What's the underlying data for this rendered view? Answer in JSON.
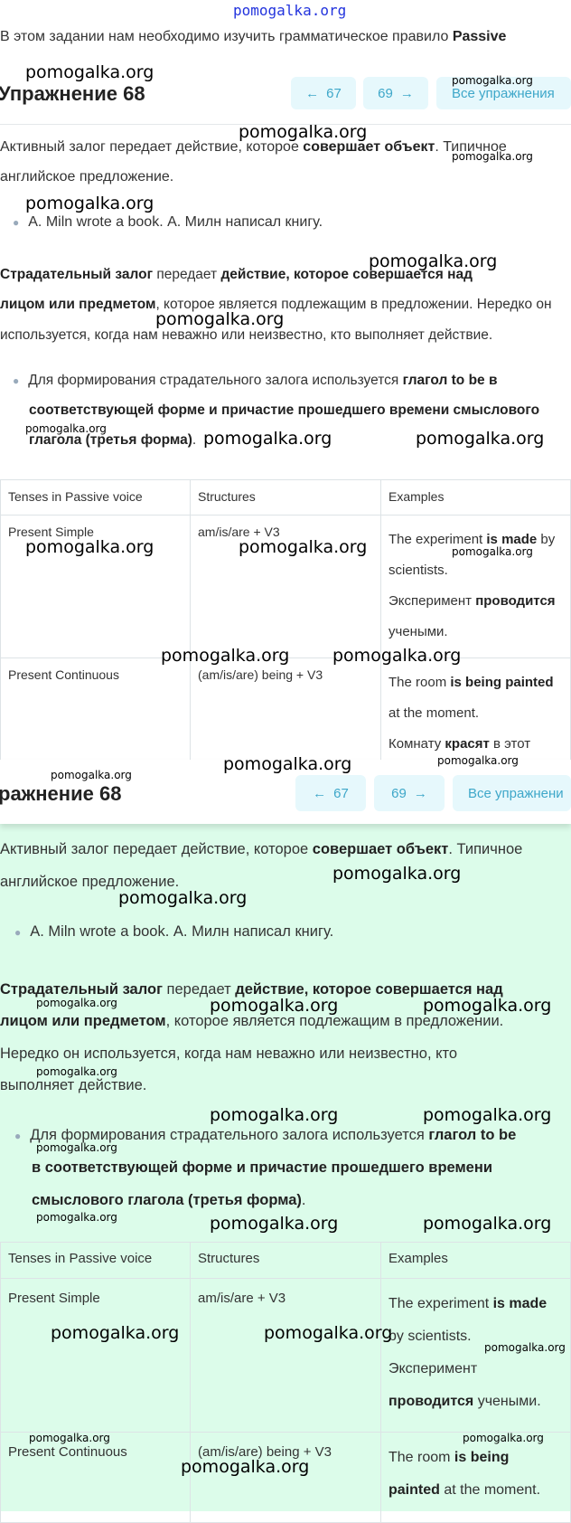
{
  "watermark": "pomogalka.org",
  "intro": {
    "text": "В этом задании нам необходимо изучить грамматическое правило ",
    "bold": "Passive"
  },
  "heading": "Упражнение 68",
  "heading_cut": "ражнение 68",
  "nav": {
    "prev": "67",
    "next": "69",
    "all": "Все упражнения",
    "all_cut": "Все упражнени",
    "prev_icon": "arrow-left-icon",
    "next_icon": "arrow-right-icon"
  },
  "p1": {
    "a": "Активный залог передает действие, которое ",
    "b": "совершает объект",
    "c": ". Типичное",
    "d": "английское предложение."
  },
  "bullet1": "A. Miln wrote a book. А. Милн написал книгу.",
  "p2": {
    "b1": "Страдательный залог",
    "a1": " передает ",
    "b2": "действие, которое совершается над",
    "b3": "лицом или предметом",
    "a2": ", которое является подлежащим в предложении. Нередко он",
    "a3": "используется, когда нам неважно или неизвестно, кто выполняет действие."
  },
  "p2b": {
    "l1b1": "Страдательный залог",
    "l1a": " передает ",
    "l1b2": "действие, которое совершается над",
    "l2b": "лицом или предметом",
    "l2a": ", которое является подлежащим в предложении.",
    "l3": "Нередко он используется, когда нам неважно или неизвестно, кто",
    "l4": "выполняет действие."
  },
  "bullet2": {
    "a": "Для формирования страдательного залога используется ",
    "b": "глагол to be в",
    "c": "соответствующей форме и причастие прошедшего времени смыслового",
    "d": "глагола (третья форма)",
    "e": "."
  },
  "bullet2b": {
    "a": "Для формирования страдательного залога используется ",
    "b": "глагол to be",
    "c": "в соответствующей форме и причастие прошедшего времени",
    "d": "смыслового глагола (третья форма)",
    "e": "."
  },
  "table": {
    "headers": [
      "Tenses in Passive voice",
      "Structures",
      "Examples"
    ],
    "rows": [
      {
        "tense": "Present Simple",
        "structure": "am/is/are + V3",
        "ex1a": "The experiment ",
        "ex1b": "is made",
        "ex1c": " by scientists.",
        "ex2a": "Эксперимент ",
        "ex2b": "проводится",
        "ex2c": " учеными."
      },
      {
        "tense": "Present Continuous",
        "structure": "(am/is/are) being + V3",
        "ex1a": "The room ",
        "ex1b": "is being painted",
        "ex1c": " at the moment.",
        "ex2a": "Комнату ",
        "ex2b": "красят",
        "ex2c": " в этот"
      }
    ]
  },
  "colors": {
    "accent": "#3ea7c9",
    "button_bg": "#e6f8fc",
    "green_bg": "#dcfcea"
  }
}
